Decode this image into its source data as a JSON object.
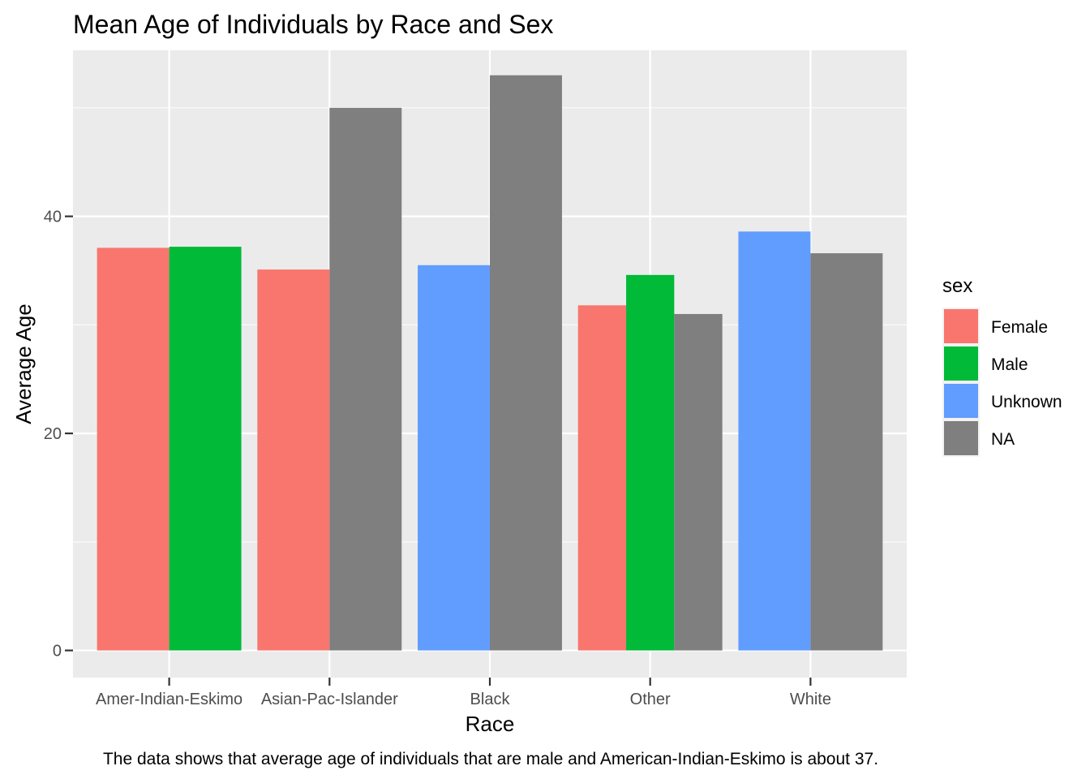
{
  "chart_data": {
    "type": "bar",
    "title": "Mean Age of Individuals by Race and Sex",
    "xlabel": "Race",
    "ylabel": "Average Age",
    "caption": "The data shows that average age of individuals that are male and American-Indian-Eskimo is about 37.",
    "categories": [
      "Amer-Indian-Eskimo",
      "Asian-Pac-Islander",
      "Black",
      "Other",
      "White"
    ],
    "ylim": [
      -2.5,
      55.3
    ],
    "yticks": [
      0,
      20,
      40
    ],
    "grid": true,
    "legend": {
      "title": "sex",
      "placement": "right",
      "entries": [
        {
          "label": "Female",
          "color": "#F8766D"
        },
        {
          "label": "Male",
          "color": "#00BA38"
        },
        {
          "label": "Unknown",
          "color": "#619CFF"
        },
        {
          "label": "NA",
          "color": "#7F7F7F"
        }
      ]
    },
    "bars": [
      {
        "category": "Amer-Indian-Eskimo",
        "sex": "Female",
        "value": 37.1
      },
      {
        "category": "Amer-Indian-Eskimo",
        "sex": "Male",
        "value": 37.2
      },
      {
        "category": "Asian-Pac-Islander",
        "sex": "Female",
        "value": 35.1
      },
      {
        "category": "Asian-Pac-Islander",
        "sex": "NA",
        "value": 50.0
      },
      {
        "category": "Black",
        "sex": "Unknown",
        "value": 35.5
      },
      {
        "category": "Black",
        "sex": "NA",
        "value": 53.0
      },
      {
        "category": "Other",
        "sex": "Female",
        "value": 31.8
      },
      {
        "category": "Other",
        "sex": "Male",
        "value": 34.6
      },
      {
        "category": "Other",
        "sex": "NA",
        "value": 31.0
      },
      {
        "category": "White",
        "sex": "Unknown",
        "value": 38.6
      },
      {
        "category": "White",
        "sex": "NA",
        "value": 36.6
      }
    ]
  }
}
